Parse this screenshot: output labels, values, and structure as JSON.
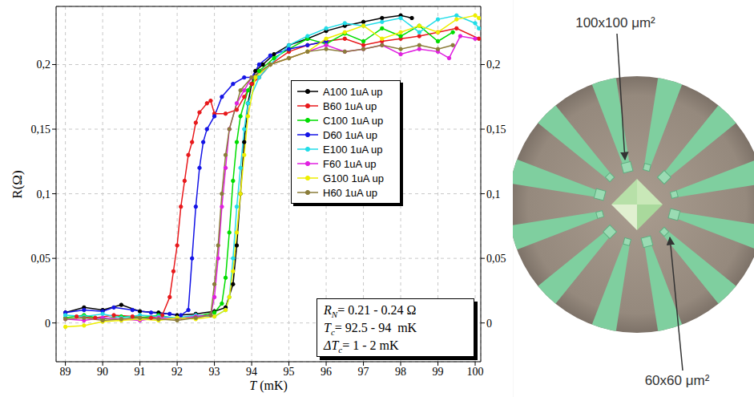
{
  "chart_data": {
    "type": "line",
    "marker": "circle",
    "line_style": "solid",
    "xlabel": "T (mK)",
    "ylabel": "R(Ω)",
    "xlim": [
      88.75,
      100.15
    ],
    "ylim": [
      -0.03,
      0.245
    ],
    "xticks": [
      89,
      90,
      91,
      92,
      93,
      94,
      95,
      96,
      97,
      98,
      99,
      100
    ],
    "yticks": [
      0,
      {
        "value": 0.05,
        "label": "0,05"
      },
      {
        "value": 0.1,
        "label": "0,1"
      },
      {
        "value": 0.15,
        "label": "0,15"
      },
      {
        "value": 0.2,
        "label": "0,2"
      }
    ],
    "y2lim": [
      -0.03,
      0.245
    ],
    "y2ticks": [
      0,
      {
        "value": 0.05,
        "label": "0,05"
      },
      {
        "value": 0.1,
        "label": "0,1"
      },
      {
        "value": 0.15,
        "label": "0,15"
      },
      {
        "value": 0.2,
        "label": "0,2"
      }
    ],
    "grid": true,
    "legend": "upper right",
    "series": [
      {
        "name": "A100 1uA up",
        "color": "#000000",
        "x": [
          89,
          89.5,
          90,
          90.5,
          91,
          91.5,
          92,
          92.5,
          93,
          93.3,
          93.5,
          93.6,
          93.7,
          93.8,
          93.9,
          94,
          94.1,
          94.3,
          94.6,
          95,
          95.5,
          96,
          96.5,
          97,
          97.5,
          98,
          98.3
        ],
        "values": [
          0.008,
          0.012,
          0.01,
          0.014,
          0.009,
          0.008,
          0.006,
          0.007,
          0.009,
          0.012,
          0.03,
          0.06,
          0.1,
          0.14,
          0.17,
          0.185,
          0.195,
          0.2,
          0.208,
          0.215,
          0.22,
          0.226,
          0.23,
          0.233,
          0.236,
          0.238,
          0.236
        ]
      },
      {
        "name": "B60 1uA up",
        "color": "#e8191c",
        "x": [
          89.3,
          89.8,
          90.3,
          90.8,
          91.3,
          91.6,
          91.8,
          91.9,
          92,
          92.1,
          92.2,
          92.3,
          92.4,
          92.5,
          92.6,
          92.8,
          92.9,
          93,
          93.3,
          93.6,
          93.8,
          94,
          94.2,
          94.5,
          95,
          95.5,
          96,
          96.5,
          97,
          97.5,
          98,
          98.5,
          99,
          99.5,
          100.1
        ],
        "values": [
          0.005,
          0.004,
          0.006,
          0.005,
          0.004,
          0.006,
          0.02,
          0.04,
          0.06,
          0.09,
          0.11,
          0.13,
          0.14,
          0.155,
          0.163,
          0.17,
          0.172,
          0.162,
          0.162,
          0.165,
          0.175,
          0.185,
          0.19,
          0.2,
          0.21,
          0.215,
          0.218,
          0.22,
          0.215,
          0.218,
          0.22,
          0.222,
          0.225,
          0.228,
          0.22
        ]
      },
      {
        "name": "C100 1uA up",
        "color": "#00dd00",
        "x": [
          89,
          89.5,
          90,
          90.5,
          91,
          91.5,
          92,
          92.5,
          93,
          93.2,
          93.3,
          93.4,
          93.5,
          93.6,
          93.7,
          93.9,
          94.2,
          94.6,
          95,
          95.5,
          96,
          96.5,
          97,
          97.5,
          98,
          98.5,
          99,
          99.4
        ],
        "values": [
          0.004,
          0.006,
          0.003,
          0.005,
          0.004,
          0.006,
          0.003,
          0.005,
          0.008,
          0.015,
          0.035,
          0.07,
          0.11,
          0.14,
          0.16,
          0.18,
          0.195,
          0.205,
          0.212,
          0.22,
          0.216,
          0.224,
          0.218,
          0.228,
          0.222,
          0.23,
          0.218,
          0.225
        ]
      },
      {
        "name": "D60 1uA up",
        "color": "#1414e6",
        "x": [
          89,
          89.5,
          90,
          90.3,
          90.8,
          91.3,
          91.8,
          92.1,
          92.3,
          92.4,
          92.5,
          92.6,
          92.7,
          92.8,
          93,
          93.2,
          93.5,
          93.8,
          94,
          94.2,
          94.5,
          95,
          95.5,
          96
        ],
        "values": [
          0.008,
          0.01,
          0.009,
          0.012,
          0.01,
          0.008,
          0.007,
          0.006,
          0.01,
          0.05,
          0.09,
          0.12,
          0.14,
          0.15,
          0.16,
          0.175,
          0.185,
          0.19,
          0.19,
          0.2,
          0.207,
          0.212,
          0.215,
          0.218
        ]
      },
      {
        "name": "E100 1uA up",
        "color": "#22dde8",
        "x": [
          89,
          89.5,
          90,
          90.5,
          91,
          91.5,
          92,
          92.5,
          93,
          93.3,
          93.4,
          93.5,
          93.6,
          93.7,
          93.8,
          93.9,
          94.2,
          94.5,
          95,
          95.5,
          96,
          96.5,
          97,
          97.5,
          98,
          98.5,
          99,
          99.5,
          100,
          100.1
        ],
        "values": [
          0.006,
          0.005,
          0.007,
          0.004,
          0.006,
          0.005,
          0.004,
          0.006,
          0.005,
          0.01,
          0.02,
          0.05,
          0.09,
          0.12,
          0.15,
          0.17,
          0.19,
          0.2,
          0.215,
          0.222,
          0.228,
          0.232,
          0.23,
          0.233,
          0.236,
          0.225,
          0.235,
          0.238,
          0.232,
          0.228
        ]
      },
      {
        "name": "F60 1uA up",
        "color": "#e020e0",
        "x": [
          89,
          89.5,
          90,
          90.5,
          91,
          91.5,
          92,
          92.5,
          92.9,
          93,
          93.1,
          93.2,
          93.3,
          93.4,
          93.6,
          93.8,
          94,
          94.5,
          95,
          95.5,
          96,
          96.5,
          97,
          97.5,
          98,
          98.5,
          99,
          99.3,
          99.6,
          100
        ],
        "values": [
          0.003,
          0.002,
          0.004,
          0.003,
          0.002,
          0.004,
          0.003,
          0.005,
          0.006,
          0.02,
          0.05,
          0.09,
          0.12,
          0.15,
          0.17,
          0.18,
          0.19,
          0.2,
          0.205,
          0.21,
          0.215,
          0.21,
          0.212,
          0.215,
          0.208,
          0.212,
          0.21,
          0.205,
          0.222,
          0.22
        ]
      },
      {
        "name": "G100 1uA up",
        "color": "#eeee00",
        "x": [
          89,
          89.5,
          90,
          90.5,
          91,
          91.5,
          92,
          92.5,
          93,
          93.3,
          93.4,
          93.5,
          93.6,
          93.7,
          93.8,
          93.9,
          94.1,
          94.5,
          95,
          95.5,
          96,
          96.5,
          97,
          97.5,
          98,
          98.5,
          99,
          99.5,
          100,
          100.1
        ],
        "values": [
          -0.003,
          -0.002,
          0.001,
          0.002,
          0.003,
          0.002,
          0.004,
          0.003,
          0.005,
          0.01,
          0.02,
          0.04,
          0.07,
          0.1,
          0.13,
          0.16,
          0.19,
          0.2,
          0.205,
          0.21,
          0.22,
          0.225,
          0.23,
          0.22,
          0.225,
          0.23,
          0.225,
          0.235,
          0.238,
          0.236
        ]
      },
      {
        "name": "H60 1uA up",
        "color": "#8b7d3a",
        "x": [
          89,
          89.5,
          90,
          90.5,
          91,
          91.5,
          92,
          92.5,
          92.9,
          93,
          93.1,
          93.2,
          93.3,
          93.4,
          93.7,
          94,
          94.5,
          95,
          95.5,
          96,
          96.5,
          97,
          97.5,
          98,
          98.5,
          99,
          99.4
        ],
        "values": [
          0.003,
          0.004,
          0.002,
          0.003,
          0.004,
          0.003,
          0.002,
          0.004,
          0.006,
          0.03,
          0.06,
          0.1,
          0.13,
          0.15,
          0.18,
          0.19,
          0.2,
          0.205,
          0.21,
          0.212,
          0.21,
          0.212,
          0.215,
          0.212,
          0.215,
          0.212,
          0.215
        ]
      }
    ],
    "annotation_box": [
      {
        "symbol": "R",
        "subscript": "N",
        "text": "= 0.21 - 0.24 Ω"
      },
      {
        "symbol": "T",
        "subscript": "c",
        "text": "= 92.5 - 94  mK"
      },
      {
        "symbol": "ΔT",
        "subscript": "c",
        "text": "= 1 - 2 mK"
      }
    ],
    "photo_labels": [
      "100x100 μm²",
      "60x60 μm²"
    ]
  }
}
